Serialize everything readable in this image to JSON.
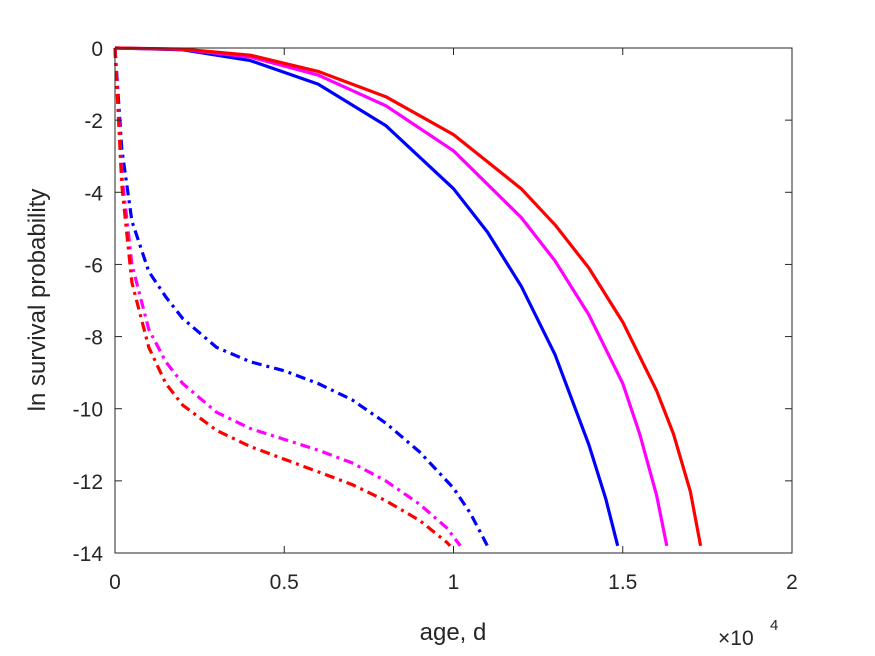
{
  "chart_data": {
    "type": "line",
    "title": "",
    "xlabel": "age, d",
    "ylabel": "ln survival probability",
    "xlim": [
      0,
      20000
    ],
    "ylim": [
      -14,
      0
    ],
    "x_multiplier": {
      "base": "×10",
      "exponent": "4"
    },
    "xticks": [
      0,
      5000,
      10000,
      15000,
      20000
    ],
    "xtick_labels": [
      "0",
      "0.5",
      "1",
      "1.5",
      "2"
    ],
    "yticks": [
      0,
      -2,
      -4,
      -6,
      -8,
      -10,
      -12,
      -14
    ],
    "ytick_labels": [
      "0",
      "-2",
      "-4",
      "-6",
      "-8",
      "-10",
      "-12",
      "-14"
    ],
    "grid": false,
    "series": [
      {
        "color": "#0000ff",
        "style": "solid",
        "points": [
          [
            0,
            0
          ],
          [
            2000,
            -0.05
          ],
          [
            4000,
            -0.35
          ],
          [
            6000,
            -1.0
          ],
          [
            8000,
            -2.15
          ],
          [
            10000,
            -3.9
          ],
          [
            11000,
            -5.1
          ],
          [
            12000,
            -6.6
          ],
          [
            13000,
            -8.5
          ],
          [
            14000,
            -11.0
          ],
          [
            14500,
            -12.5
          ],
          [
            14850,
            -13.8
          ]
        ]
      },
      {
        "color": "#ff00ff",
        "style": "solid",
        "points": [
          [
            0,
            0
          ],
          [
            2000,
            -0.04
          ],
          [
            4000,
            -0.25
          ],
          [
            6000,
            -0.75
          ],
          [
            8000,
            -1.6
          ],
          [
            10000,
            -2.85
          ],
          [
            12000,
            -4.7
          ],
          [
            13000,
            -5.9
          ],
          [
            14000,
            -7.4
          ],
          [
            15000,
            -9.3
          ],
          [
            15500,
            -10.7
          ],
          [
            16000,
            -12.4
          ],
          [
            16300,
            -13.8
          ]
        ]
      },
      {
        "color": "#ff0000",
        "style": "solid",
        "points": [
          [
            0,
            0
          ],
          [
            2000,
            -0.03
          ],
          [
            4000,
            -0.2
          ],
          [
            6000,
            -0.65
          ],
          [
            8000,
            -1.35
          ],
          [
            10000,
            -2.4
          ],
          [
            12000,
            -3.9
          ],
          [
            13000,
            -4.9
          ],
          [
            14000,
            -6.1
          ],
          [
            15000,
            -7.6
          ],
          [
            16000,
            -9.5
          ],
          [
            16500,
            -10.7
          ],
          [
            17000,
            -12.3
          ],
          [
            17300,
            -13.8
          ]
        ]
      },
      {
        "color": "#0000ff",
        "style": "dashdot",
        "points": [
          [
            0,
            0
          ],
          [
            200,
            -2.8
          ],
          [
            500,
            -4.8
          ],
          [
            1000,
            -6.2
          ],
          [
            1500,
            -6.9
          ],
          [
            2000,
            -7.5
          ],
          [
            3000,
            -8.3
          ],
          [
            4000,
            -8.7
          ],
          [
            5000,
            -8.95
          ],
          [
            6000,
            -9.3
          ],
          [
            7000,
            -9.75
          ],
          [
            8000,
            -10.4
          ],
          [
            9000,
            -11.2
          ],
          [
            10000,
            -12.2
          ],
          [
            10500,
            -12.9
          ],
          [
            11000,
            -13.8
          ]
        ]
      },
      {
        "color": "#ff00ff",
        "style": "dashdot",
        "points": [
          [
            0,
            0
          ],
          [
            200,
            -3.5
          ],
          [
            500,
            -6.0
          ],
          [
            1000,
            -7.8
          ],
          [
            1500,
            -8.7
          ],
          [
            2000,
            -9.3
          ],
          [
            3000,
            -10.1
          ],
          [
            4000,
            -10.55
          ],
          [
            5000,
            -10.85
          ],
          [
            6000,
            -11.15
          ],
          [
            7000,
            -11.5
          ],
          [
            8000,
            -12.0
          ],
          [
            9000,
            -12.65
          ],
          [
            9800,
            -13.3
          ],
          [
            10200,
            -13.8
          ]
        ]
      },
      {
        "color": "#ff0000",
        "style": "dashdot",
        "points": [
          [
            0,
            0
          ],
          [
            200,
            -3.8
          ],
          [
            500,
            -6.5
          ],
          [
            1000,
            -8.3
          ],
          [
            1500,
            -9.3
          ],
          [
            2000,
            -9.9
          ],
          [
            3000,
            -10.6
          ],
          [
            4000,
            -11.05
          ],
          [
            5000,
            -11.4
          ],
          [
            6000,
            -11.75
          ],
          [
            7000,
            -12.1
          ],
          [
            8000,
            -12.55
          ],
          [
            9000,
            -13.1
          ],
          [
            9800,
            -13.7
          ],
          [
            9900,
            -13.8
          ]
        ]
      }
    ]
  }
}
